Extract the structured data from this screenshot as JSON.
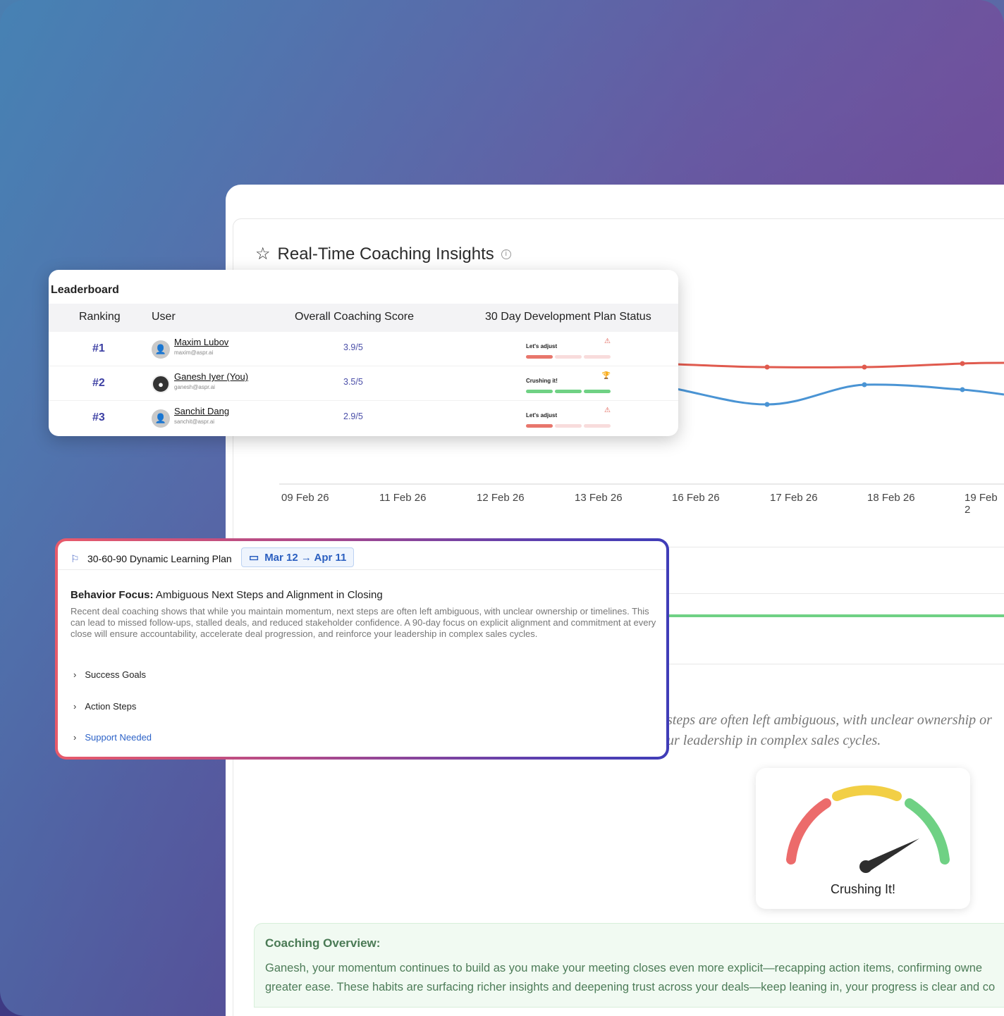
{
  "insights": {
    "title": "Real-Time Coaching Insights",
    "x_labels": [
      "09 Feb 26",
      "11 Feb 26",
      "12 Feb 26",
      "13 Feb 26",
      "16 Feb 26",
      "17 Feb 26",
      "18 Feb 26",
      "19 Feb 2"
    ]
  },
  "leaderboard": {
    "title": "Leaderboard",
    "columns": [
      "Ranking",
      "User",
      "Overall Coaching Score",
      "30 Day Development Plan Status"
    ],
    "rows": [
      {
        "rank": "#1",
        "name": "Maxim Lubov",
        "email": "maxim@aspr.ai",
        "score": "3.9/5",
        "status": "Let's adjust"
      },
      {
        "rank": "#2",
        "name": "Ganesh Iyer (You)",
        "email": "ganesh@aspr.ai",
        "score": "3.5/5",
        "status": "Crushing it!"
      },
      {
        "rank": "#3",
        "name": "Sanchit Dang",
        "email": "sanchit@aspr.ai",
        "score": "2.9/5",
        "status": "Let's adjust"
      }
    ]
  },
  "plan": {
    "title": "30-60-90 Dynamic Learning Plan",
    "date_range": "Mar 12 → Apr 11",
    "focus_label": "Behavior Focus:",
    "focus_text": " Ambiguous Next Steps and Alignment in Closing",
    "description": "Recent deal coaching shows that while you maintain momentum, next steps are often left ambiguous, with unclear ownership or timelines. This can lead to missed follow-ups, stalled deals, and reduced stakeholder confidence. A 90-day focus on explicit alignment and commitment at every close will ensure accountability, accelerate deal progression, and reinforce your leadership in complex sales cycles.",
    "sections": [
      "Success Goals",
      "Action Steps",
      "Support Needed"
    ]
  },
  "background_text": {
    "line1": "steps are often left ambiguous, with unclear ownership or",
    "line2": "ur leadership in complex sales cycles."
  },
  "gauge": {
    "label": "Crushing It!"
  },
  "overview": {
    "title": "Coaching Overview:",
    "line1": "Ganesh, your momentum continues to build as you make your meeting closes even more explicit—recapping action items, confirming owne",
    "line2": "greater ease. These habits are surfacing richer insights and deepening trust across your deals—keep leaning in, your progress is clear and co"
  },
  "colors": {
    "red": "#e05a4e",
    "blue": "#4a94d4",
    "green": "#6fd184",
    "yellow": "#f2cf45",
    "accent": "#3c3fa3"
  }
}
